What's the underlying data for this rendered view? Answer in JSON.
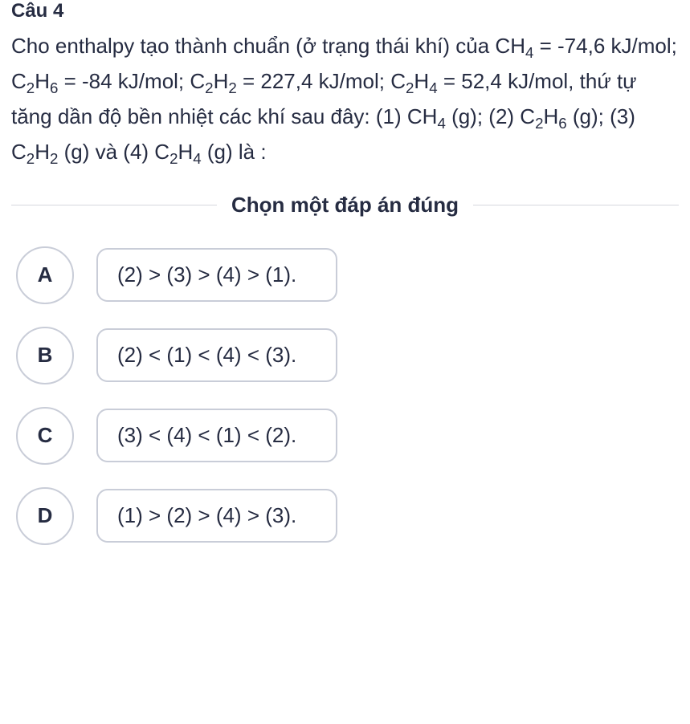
{
  "header": "Câu 4",
  "question": {
    "prefix": "Cho enthalpy tạo thành chuẩn (ở trạng thái khí) của CH",
    "s1": "4",
    "t1": " = -74,6 kJ/mol; C",
    "s2": "2",
    "t2": "H",
    "s3": "6",
    "t3": " = -84 kJ/mol; C",
    "s4": "2",
    "t4": "H",
    "s5": "2",
    "t5": " = 227,4 kJ/mol; C",
    "s6": "2",
    "t6": "H",
    "s7": "4",
    "t7": " = 52,4 kJ/mol, thứ tự tăng dần độ bền nhiệt các khí sau đây: (1) CH",
    "s8": "4",
    "t8": " (g); (2) C",
    "s9": "2",
    "t9": "H",
    "s10": "6",
    "t10": " (g); (3) C",
    "s11": "2",
    "t11": "H",
    "s12": "2",
    "t12": " (g) và (4) C",
    "s13": "2",
    "t13": "H",
    "s14": "4",
    "t14": " (g) là :"
  },
  "choose_label": "Chọn một đáp án đúng",
  "options": [
    {
      "letter": "A",
      "text": "(2) > (3) > (4) > (1)."
    },
    {
      "letter": "B",
      "text": "(2) < (1) < (4) < (3)."
    },
    {
      "letter": "C",
      "text": "(3) < (4) < (1) < (2)."
    },
    {
      "letter": "D",
      "text": "(1) > (2) > (4) > (3)."
    }
  ],
  "colors": {
    "text": "#262c42",
    "border": "#c9cdd8",
    "divider": "#d6d8de",
    "background": "#ffffff"
  },
  "typography": {
    "question_fontsize": 26,
    "option_fontsize": 26,
    "letter_fontsize": 26,
    "choose_fontsize": 26
  },
  "layout": {
    "circle_diameter": 72,
    "box_radius": 14,
    "row_gap": 28,
    "letter_box_gap": 28
  }
}
